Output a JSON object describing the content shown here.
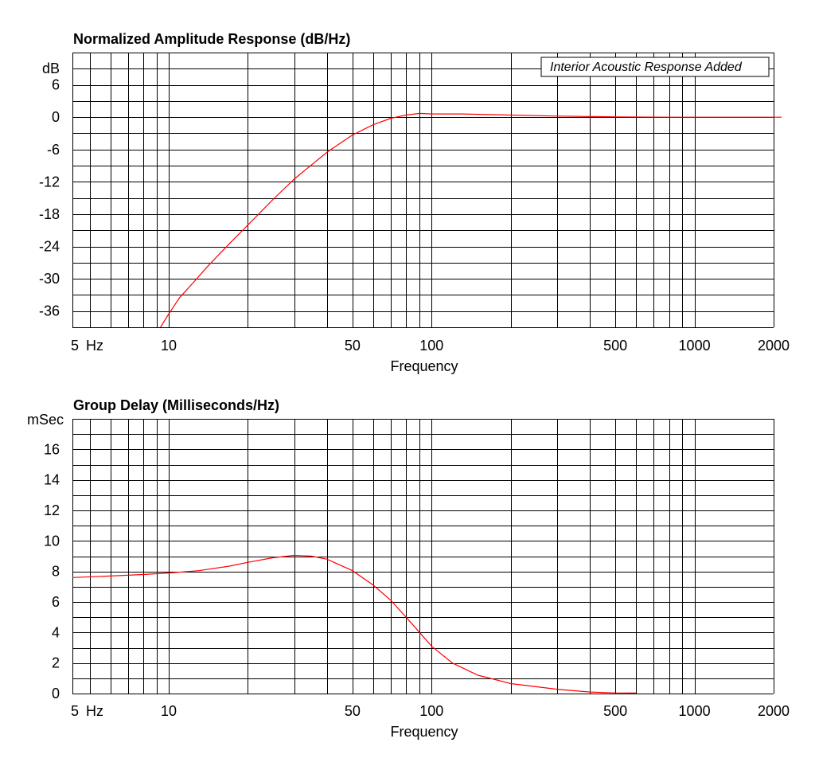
{
  "chart_data": [
    {
      "type": "line",
      "title": "Normalized Amplitude Response (dB/Hz)",
      "xlabel": "Frequency",
      "ylabel": "dB",
      "xscale": "log",
      "xlim": [
        4.3,
        2000
      ],
      "ylim": [
        -39,
        12
      ],
      "xgrid": [
        4.3,
        5,
        6,
        7,
        8,
        9,
        10,
        20,
        30,
        40,
        50,
        60,
        70,
        80,
        90,
        100,
        200,
        300,
        400,
        500,
        600,
        700,
        800,
        900,
        1000,
        2000
      ],
      "ygrid": [
        -39,
        -36,
        -33,
        -30,
        -27,
        -24,
        -21,
        -18,
        -15,
        -12,
        -9,
        -6,
        -3,
        0,
        3,
        6,
        9,
        12
      ],
      "xtick_labels": [
        {
          "value": 10,
          "label": "10"
        },
        {
          "value": 50,
          "label": "50"
        },
        {
          "value": 100,
          "label": "100"
        },
        {
          "value": 500,
          "label": "500"
        },
        {
          "value": 1000,
          "label": "1000"
        },
        {
          "value": 2000,
          "label": "2000"
        }
      ],
      "xtick_prefix": "5",
      "xtick_unit": "Hz",
      "ytick_labels": [
        {
          "value": 6,
          "label": "6"
        },
        {
          "value": 0,
          "label": "0"
        },
        {
          "value": -6,
          "label": "-6"
        },
        {
          "value": -12,
          "label": "-12"
        },
        {
          "value": -18,
          "label": "-18"
        },
        {
          "value": -24,
          "label": "-24"
        },
        {
          "value": -30,
          "label": "-30"
        },
        {
          "value": -36,
          "label": "-36"
        }
      ],
      "annotation": "Interior Acoustic Response Added",
      "grid": true,
      "line_color": "#ff0000",
      "series": [
        {
          "x": [
            9.3,
            10,
            11,
            12.5,
            14,
            17,
            20,
            25,
            30,
            40,
            50,
            60,
            70,
            80,
            90,
            100,
            130,
            200,
            300,
            500,
            800
          ],
          "y": [
            -39,
            -36.5,
            -33.5,
            -30.5,
            -27.8,
            -23.5,
            -20,
            -15.2,
            -11.5,
            -6.5,
            -3.3,
            -1.4,
            -0.2,
            0.4,
            0.7,
            0.6,
            0.6,
            0.4,
            0.2,
            0.05,
            0
          ]
        },
        {
          "x": [
            800,
            1000,
            2000
          ],
          "y": [
            0,
            0,
            0
          ]
        }
      ]
    },
    {
      "type": "line",
      "title": "Group Delay (Milliseconds/Hz)",
      "xlabel": "Frequency",
      "ylabel": "mSec",
      "xscale": "log",
      "xlim": [
        4.3,
        2000
      ],
      "ylim": [
        0,
        18
      ],
      "xgrid": [
        4.3,
        5,
        6,
        7,
        8,
        9,
        10,
        20,
        30,
        40,
        50,
        60,
        70,
        80,
        90,
        100,
        200,
        300,
        400,
        500,
        600,
        700,
        800,
        900,
        1000,
        2000
      ],
      "ygrid": [
        0,
        1,
        2,
        3,
        4,
        5,
        6,
        7,
        8,
        9,
        10,
        11,
        12,
        13,
        14,
        15,
        16,
        17,
        18
      ],
      "xtick_labels": [
        {
          "value": 10,
          "label": "10"
        },
        {
          "value": 50,
          "label": "50"
        },
        {
          "value": 100,
          "label": "100"
        },
        {
          "value": 500,
          "label": "500"
        },
        {
          "value": 1000,
          "label": "1000"
        },
        {
          "value": 2000,
          "label": "2000"
        }
      ],
      "xtick_prefix": "5",
      "xtick_unit": "Hz",
      "ytick_labels": [
        {
          "value": 16,
          "label": "16"
        },
        {
          "value": 14,
          "label": "14"
        },
        {
          "value": 12,
          "label": "12"
        },
        {
          "value": 10,
          "label": "10"
        },
        {
          "value": 8,
          "label": "8"
        },
        {
          "value": 6,
          "label": "6"
        },
        {
          "value": 4,
          "label": "4"
        },
        {
          "value": 2,
          "label": "2"
        },
        {
          "value": 0,
          "label": "0"
        }
      ],
      "grid": true,
      "line_color": "#ff0000",
      "series": [
        {
          "x": [
            4.3,
            6,
            8,
            10,
            13,
            17,
            20,
            25,
            30,
            35,
            40,
            50,
            60,
            70,
            80,
            90,
            100,
            120,
            150,
            200,
            300,
            400,
            500,
            600
          ],
          "y": [
            7.6,
            7.7,
            7.8,
            7.9,
            8.05,
            8.35,
            8.6,
            8.9,
            9.05,
            9.0,
            8.8,
            8.05,
            7.1,
            6.1,
            5.0,
            4.0,
            3.1,
            2.0,
            1.2,
            0.65,
            0.28,
            0.1,
            0.04,
            0.03
          ]
        }
      ]
    }
  ]
}
